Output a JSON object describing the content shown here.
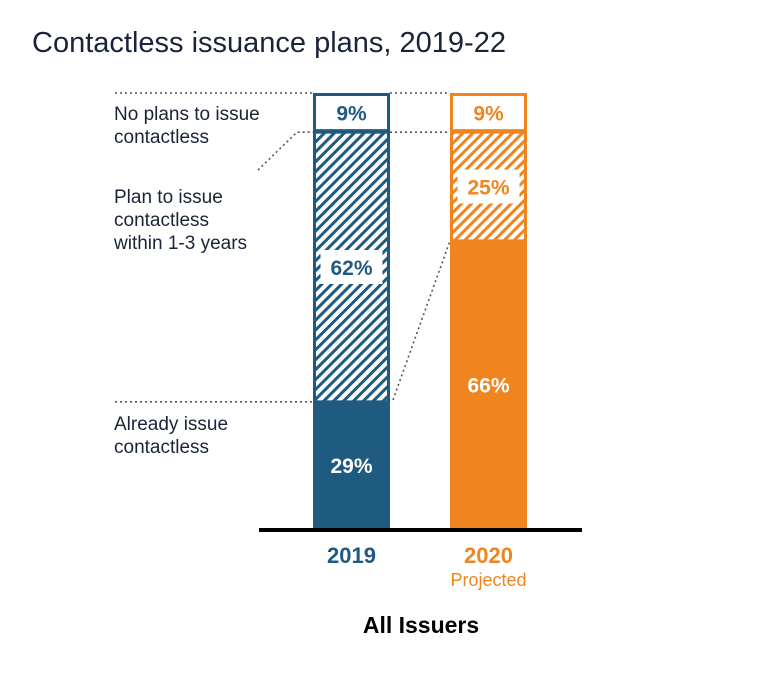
{
  "chart_data": {
    "type": "bar",
    "stacked": true,
    "title": "Contactless issuance plans, 2019-22",
    "xlabel": "All Issuers",
    "ylabel": "",
    "ylim": [
      0,
      100
    ],
    "grid": false,
    "legend_placement": "left",
    "categories": [
      "2019",
      "2020"
    ],
    "category_subtitles": [
      "",
      "Projected"
    ],
    "category_colors": [
      "#1f5a80",
      "#f0841e"
    ],
    "series": [
      {
        "name": "Already issue contactless",
        "fill": "solid",
        "values": [
          29,
          66
        ],
        "labels": [
          "29%",
          "66%"
        ]
      },
      {
        "name": "Plan to issue contactless within 1-3 years",
        "fill": "hatched",
        "values": [
          62,
          25
        ],
        "labels": [
          "62%",
          "25%"
        ]
      },
      {
        "name": "No plans to issue contactless",
        "fill": "outline",
        "values": [
          9,
          9
        ],
        "labels": [
          "9%",
          "9%"
        ]
      }
    ],
    "legend_lines": [
      [
        "No plans to issue",
        "contactless"
      ],
      [
        "Plan to issue",
        "contactless",
        "within 1-3 years"
      ],
      [
        "Already issue",
        "contactless"
      ]
    ]
  }
}
